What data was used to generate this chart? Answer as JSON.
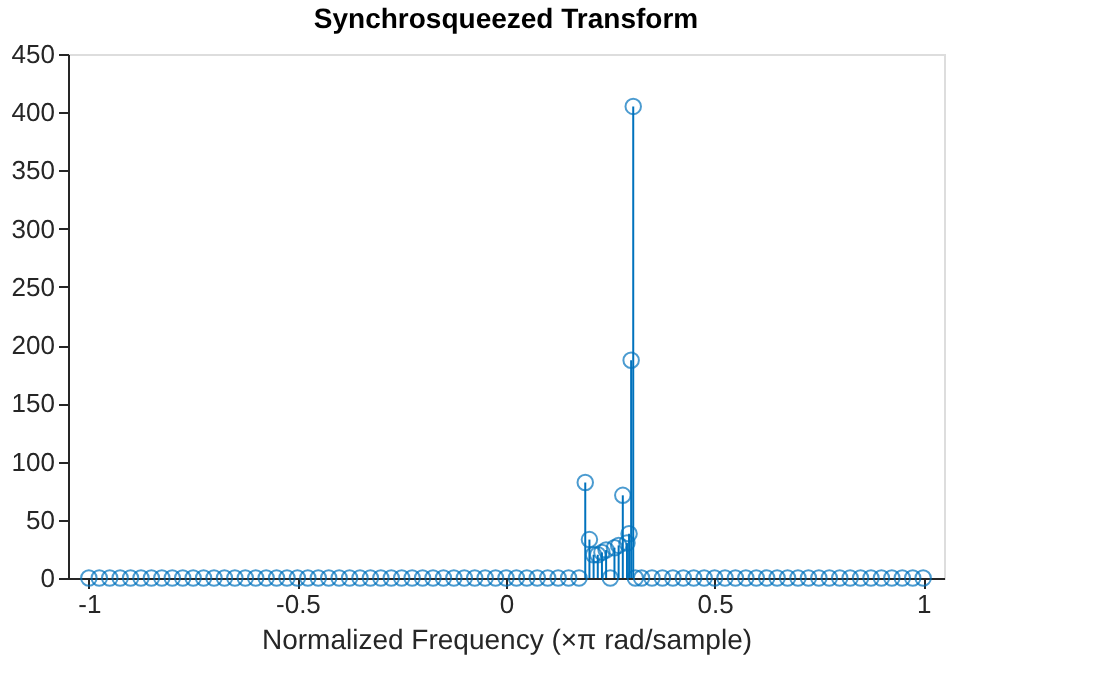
{
  "chart_data": {
    "type": "lollipop",
    "title": "Synchrosqueezed Transform",
    "xlabel": "Normalized  Frequency  (×π  rad/sample)",
    "x": [
      -1,
      -0.975,
      -0.95,
      -0.925,
      -0.9,
      -0.875,
      -0.85,
      -0.825,
      -0.8,
      -0.775,
      -0.75,
      -0.725,
      -0.7,
      -0.675,
      -0.65,
      -0.625,
      -0.6,
      -0.575,
      -0.55,
      -0.525,
      -0.5,
      -0.475,
      -0.45,
      -0.425,
      -0.4,
      -0.375,
      -0.35,
      -0.325,
      -0.3,
      -0.275,
      -0.25,
      -0.225,
      -0.2,
      -0.175,
      -0.15,
      -0.125,
      -0.1,
      -0.075,
      -0.05,
      -0.025,
      0,
      0.025,
      0.05,
      0.075,
      0.1,
      0.125,
      0.15,
      0.175,
      0.19,
      0.2,
      0.21,
      0.22,
      0.23,
      0.24,
      0.25,
      0.26,
      0.27,
      0.28,
      0.29,
      0.295,
      0.3,
      0.305,
      0.31,
      0.325,
      0.35,
      0.375,
      0.4,
      0.425,
      0.45,
      0.475,
      0.5,
      0.525,
      0.55,
      0.575,
      0.6,
      0.625,
      0.65,
      0.675,
      0.7,
      0.725,
      0.75,
      0.775,
      0.8,
      0.825,
      0.85,
      0.875,
      0.9,
      0.925,
      0.95,
      0.975,
      1
    ],
    "series": [
      {
        "color": "#0072bd",
        "values": [
          0,
          0,
          0,
          0,
          0,
          0,
          0,
          0,
          0,
          0,
          0,
          0,
          0,
          0,
          0,
          0,
          0,
          0,
          0,
          0,
          0,
          0,
          0,
          0,
          0,
          0,
          0,
          0,
          0,
          0,
          0,
          0,
          0,
          0,
          0,
          0,
          0,
          0,
          0,
          0,
          0,
          0,
          0,
          0,
          0,
          0,
          0,
          0,
          82,
          33,
          20,
          20,
          22,
          24,
          0,
          26,
          28,
          71,
          30,
          38,
          187,
          405,
          0,
          0,
          0,
          0,
          0,
          0,
          0,
          0,
          0,
          0,
          0,
          0,
          0,
          0,
          0,
          0,
          0,
          0,
          0,
          0,
          0,
          0,
          0,
          0,
          0,
          0,
          0,
          0,
          0
        ]
      }
    ],
    "xlim": [
      -1.05,
      1.05
    ],
    "xticks": [
      -1,
      -0.5,
      0,
      0.5,
      1
    ],
    "ylim": [
      0,
      450
    ],
    "yticks": [
      0,
      50,
      100,
      150,
      200,
      250,
      300,
      350,
      400,
      450
    ],
    "marker": "circle",
    "grid": false
  }
}
